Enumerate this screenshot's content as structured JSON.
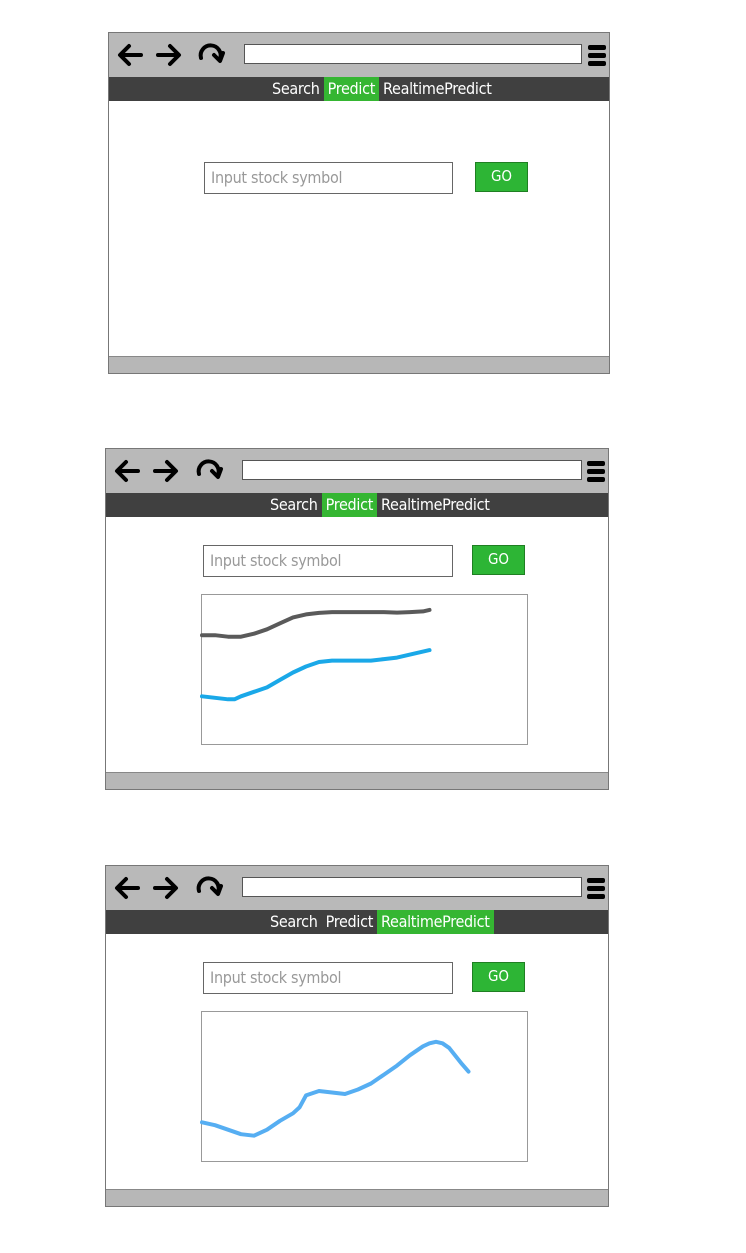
{
  "colors": {
    "accent_green": "#35b632",
    "menubar": "#404040",
    "titlebar": "#b9b9b9",
    "line_dark": "#5a5a5a",
    "line_blue": "#1aa8e8",
    "line_light_blue": "#56aef2"
  },
  "icons": {
    "back": "arrow-left-icon",
    "forward": "arrow-right-icon",
    "reload": "reload-icon",
    "menu": "hamburger-menu-icon"
  },
  "address_bar": {
    "value": ""
  },
  "tabs": [
    "Search",
    "Predict",
    "RealtimePredict"
  ],
  "search": {
    "placeholder": "Input stock symbol",
    "button_label": "GO"
  },
  "screens": [
    {
      "active_tab": "Predict",
      "has_chart": false
    },
    {
      "active_tab": "Predict",
      "has_chart": true
    },
    {
      "active_tab": "RealtimePredict",
      "has_chart": true
    }
  ],
  "chart_data": [
    {
      "type": "line",
      "title": "",
      "xlabel": "",
      "ylabel": "",
      "grid": false,
      "series": [
        {
          "color": "#5a5a5a",
          "x": [
            0,
            4,
            8,
            12,
            16,
            20,
            24,
            28,
            32,
            36,
            40,
            44,
            48,
            52,
            56,
            60,
            64,
            68,
            70
          ],
          "y": [
            73,
            73,
            72,
            72,
            74,
            77,
            81,
            85,
            87,
            88,
            88.5,
            88.5,
            88.5,
            88.5,
            88.5,
            88.2,
            88.5,
            89,
            90
          ]
        },
        {
          "color": "#1aa8e8",
          "x": [
            0,
            4,
            8,
            10,
            12,
            16,
            20,
            24,
            28,
            32,
            36,
            40,
            44,
            48,
            52,
            56,
            60,
            64,
            70
          ],
          "y": [
            32,
            31,
            30,
            30,
            32,
            35,
            38,
            43,
            48,
            52,
            55,
            56,
            56,
            56,
            56,
            57,
            58,
            60,
            63
          ]
        }
      ]
    },
    {
      "type": "line",
      "title": "",
      "xlabel": "",
      "ylabel": "",
      "grid": false,
      "series": [
        {
          "color": "#56aef2",
          "x": [
            0,
            4,
            8,
            12,
            16,
            20,
            24,
            28,
            30,
            32,
            36,
            40,
            44,
            48,
            52,
            56,
            60,
            64,
            68,
            70,
            72,
            74,
            76,
            80,
            82
          ],
          "y": [
            26,
            24,
            21,
            18,
            17,
            21,
            27,
            32,
            36,
            44,
            47,
            46,
            45,
            48,
            52,
            58,
            64,
            71,
            77,
            79,
            80,
            79,
            76,
            65,
            60
          ]
        }
      ]
    }
  ]
}
